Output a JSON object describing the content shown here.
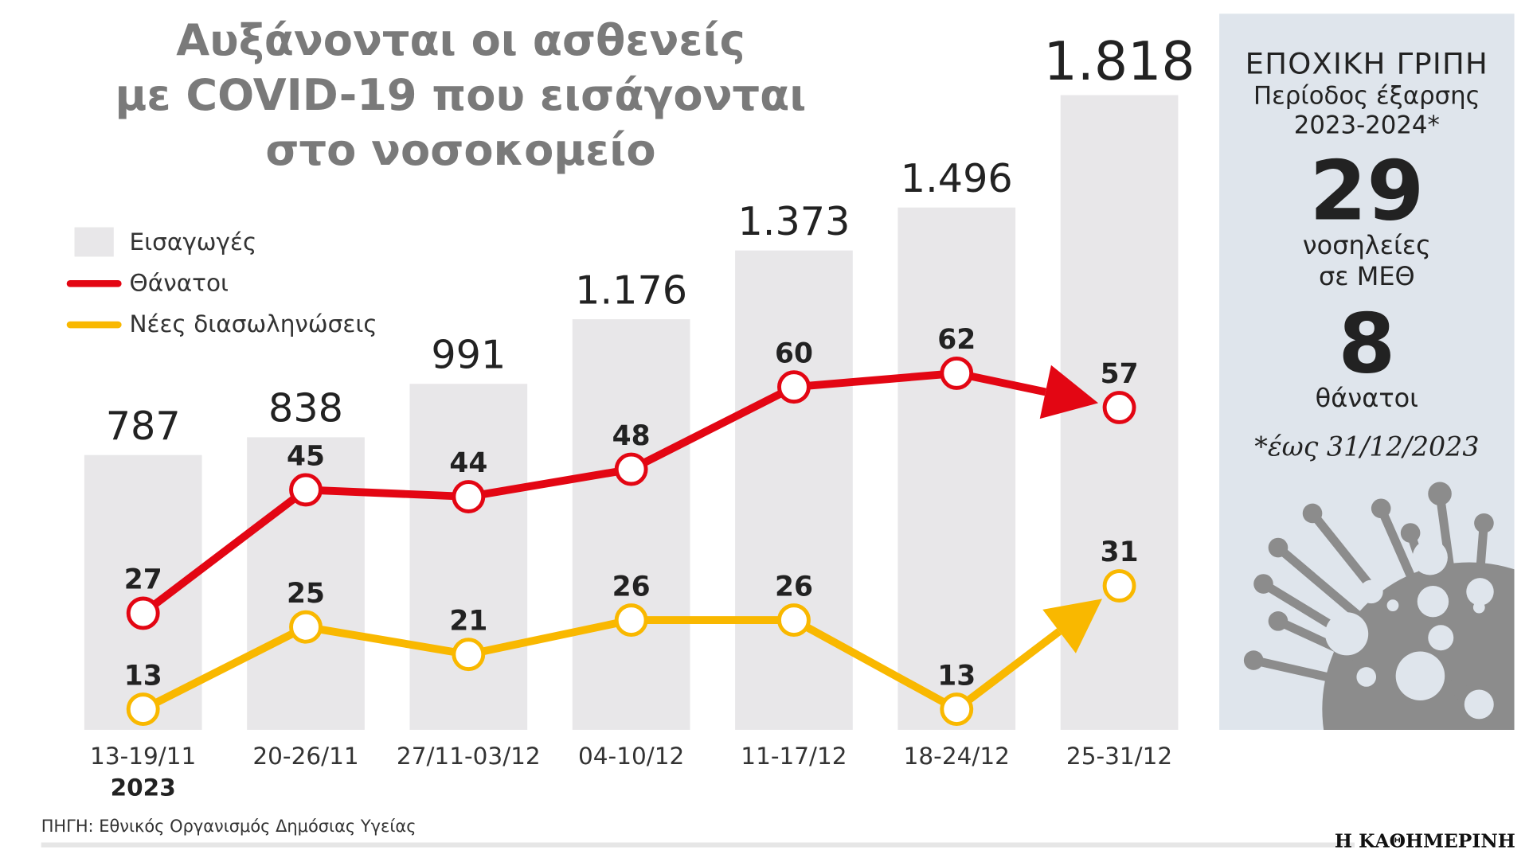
{
  "title": [
    "Αυξάνονται οι ασθενείς",
    "με COVID-19 που εισάγονται",
    "στο νοσοκομείο"
  ],
  "legend": {
    "admissions": "Εισαγωγές",
    "deaths": "Θάνατοι",
    "intubations": "Νέες διασωληνώσεις"
  },
  "chart_data": {
    "type": "bar+line",
    "title": "Αυξάνονται οι ασθενείς με COVID-19 που εισάγονται στο νοσοκομείο",
    "categories": [
      "13-19/11",
      "20-26/11",
      "27/11-03/12",
      "04-10/12",
      "11-17/12",
      "18-24/12",
      "25-31/12"
    ],
    "year_label": "2023",
    "series": [
      {
        "name": "Εισαγωγές",
        "type": "bar",
        "values": [
          787,
          838,
          991,
          1176,
          1373,
          1496,
          1818
        ],
        "labels": [
          "787",
          "838",
          "991",
          "1.176",
          "1.373",
          "1.496",
          "1.818"
        ]
      },
      {
        "name": "Θάνατοι",
        "type": "line",
        "values": [
          27,
          45,
          44,
          48,
          60,
          62,
          57
        ]
      },
      {
        "name": "Νέες διασωληνώσεις",
        "type": "line",
        "values": [
          13,
          25,
          21,
          26,
          26,
          13,
          31
        ]
      }
    ]
  },
  "colors": {
    "bar": "#e8e7e9",
    "deaths": "#e30613",
    "intubations": "#f9b800",
    "panel": "#dfe5ec",
    "virus": "#8c8c8c"
  },
  "panel": {
    "heading": "ΕΠΟΧΙΚΗ ΓΡΙΠΗ",
    "period": "Περίοδος έξαρσης",
    "years": "2023-2024*",
    "icu_value": "29",
    "icu_label1": "νοσηλείες",
    "icu_label2": "σε ΜΕΘ",
    "deaths_value": "8",
    "deaths_label": "θάνατοι",
    "note": "*έως 31/12/2023"
  },
  "source": "ΠΗΓΗ: Εθνικός Οργανισμός Δημόσιας Υγείας",
  "brand": "Η ΚΑΘΗΜΕΡΙΝΗ"
}
